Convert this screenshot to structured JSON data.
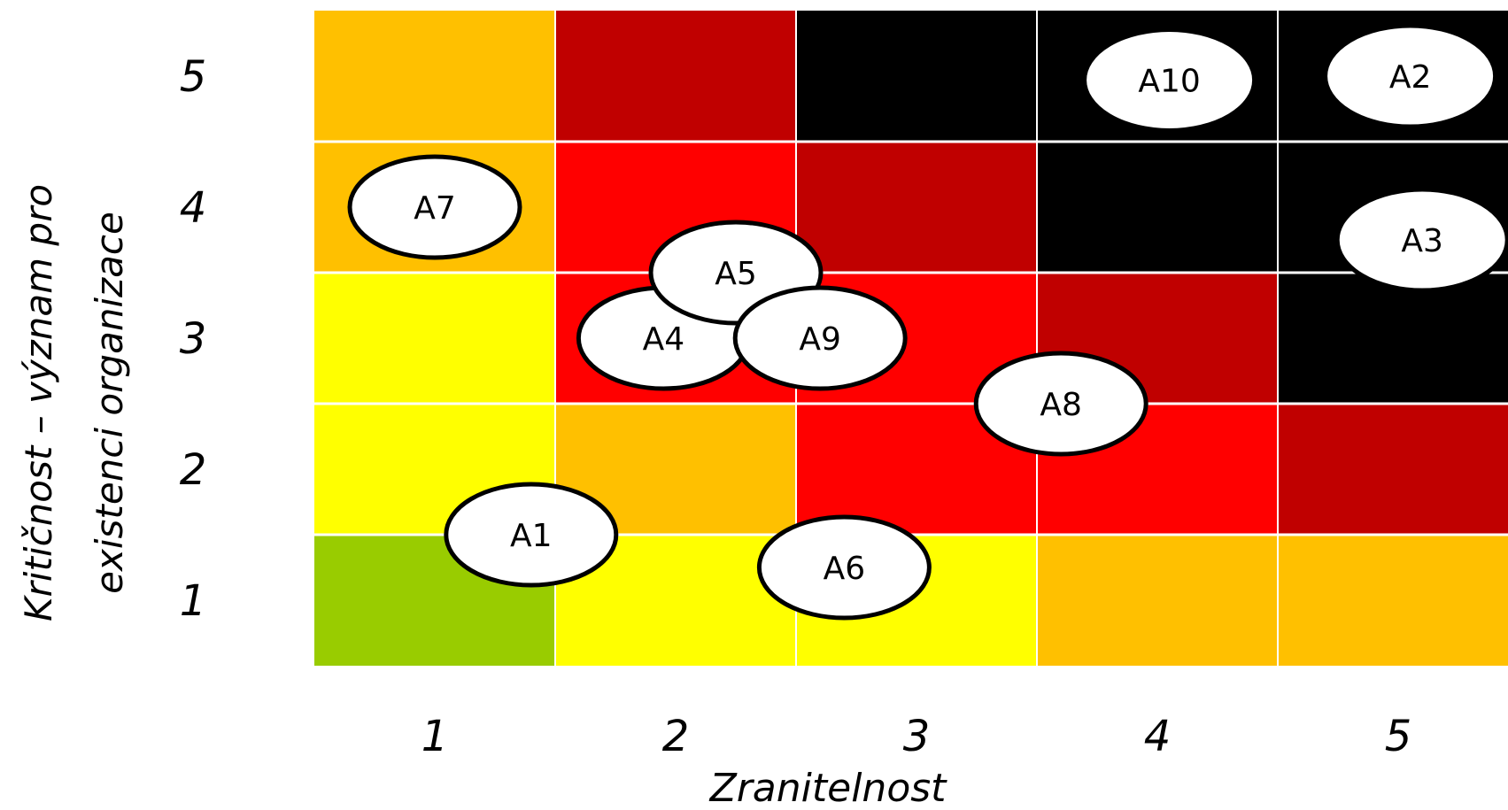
{
  "chart_data": {
    "type": "heatmap",
    "title": "",
    "xlabel": "Zranitelnost",
    "ylabel_lines": [
      "Kritičnost – význam pro",
      "existenci organizace"
    ],
    "x_categories": [
      "1",
      "2",
      "3",
      "4",
      "5"
    ],
    "y_categories": [
      "1",
      "2",
      "3",
      "4",
      "5"
    ],
    "colors": {
      "green": "#99cc00",
      "yellow": "#ffff00",
      "orange": "#ffc000",
      "red": "#ff0000",
      "darkred": "#c00000",
      "black": "#000000"
    },
    "cell_colors": [
      [
        "green",
        "yellow",
        "yellow",
        "orange",
        "orange"
      ],
      [
        "yellow",
        "orange",
        "red",
        "red",
        "darkred"
      ],
      [
        "yellow",
        "red",
        "red",
        "darkred",
        "black"
      ],
      [
        "orange",
        "red",
        "darkred",
        "black",
        "black"
      ],
      [
        "orange",
        "darkred",
        "black",
        "black",
        "black"
      ]
    ],
    "points": [
      {
        "label": "A1",
        "x": 1.4,
        "y": 1.5
      },
      {
        "label": "A2",
        "x": 5.05,
        "y": 5.0
      },
      {
        "label": "A3",
        "x": 5.1,
        "y": 3.75
      },
      {
        "label": "A4",
        "x": 1.95,
        "y": 3.0
      },
      {
        "label": "A5",
        "x": 2.25,
        "y": 3.5
      },
      {
        "label": "A6",
        "x": 2.7,
        "y": 1.25
      },
      {
        "label": "A7",
        "x": 1.0,
        "y": 4.0
      },
      {
        "label": "A8",
        "x": 3.6,
        "y": 2.5
      },
      {
        "label": "A9",
        "x": 2.6,
        "y": 3.0
      },
      {
        "label": "A10",
        "x": 4.05,
        "y": 4.97
      }
    ]
  }
}
